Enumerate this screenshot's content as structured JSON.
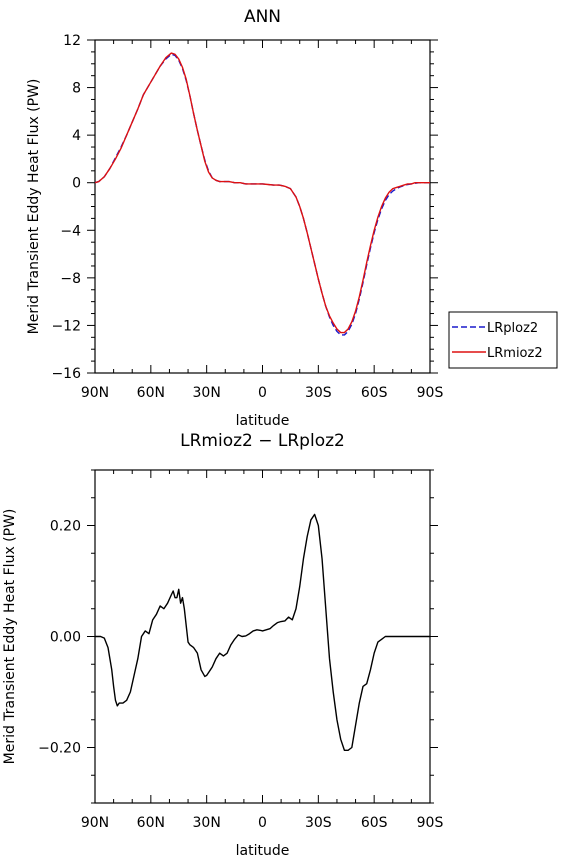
{
  "chart_data": [
    {
      "type": "line",
      "title": "ANN",
      "xlabel": "latitude",
      "ylabel": "Merid Transient Eddy Heat Flux (PW)",
      "xlim": [
        90,
        -90
      ],
      "ylim": [
        -16,
        12
      ],
      "x_tick_values": [
        90,
        60,
        30,
        0,
        -30,
        -60,
        -90
      ],
      "x_tick_labels": [
        "90N",
        "60N",
        "30N",
        "0",
        "30S",
        "60S",
        "90S"
      ],
      "y_tick_values": [
        12,
        8,
        4,
        0,
        -4,
        -8,
        -12,
        -16
      ],
      "y_tick_labels": [
        "12",
        "8",
        "4",
        "0",
        "−4",
        "−8",
        "−12",
        "−16"
      ],
      "legend_placement": "right",
      "series": [
        {
          "name": "LRploz2",
          "color": "#1a1acc",
          "dash": "dashed",
          "x": [
            90,
            88,
            85,
            82,
            79,
            76,
            73,
            70,
            67,
            64,
            61,
            58,
            55,
            52,
            49,
            47,
            45,
            43,
            41,
            39,
            37,
            35,
            33,
            31,
            29,
            27,
            25,
            23,
            21,
            18,
            15,
            12,
            9,
            6,
            3,
            0,
            -3,
            -6,
            -9,
            -12,
            -15,
            -18,
            -20,
            -22,
            -24,
            -26,
            -28,
            -30,
            -32,
            -34,
            -36,
            -38,
            -40,
            -42,
            -44,
            -46,
            -48,
            -50,
            -52,
            -54,
            -56,
            -58,
            -60,
            -62,
            -64,
            -66,
            -68,
            -70,
            -72,
            -74,
            -76,
            -78,
            -80,
            -82,
            -84,
            -86,
            -88,
            -90
          ],
          "y": [
            0.0,
            0.1,
            0.5,
            1.2,
            2.1,
            3.0,
            4.0,
            5.1,
            6.2,
            7.4,
            8.2,
            9.0,
            9.8,
            10.4,
            10.8,
            10.7,
            10.3,
            9.6,
            8.6,
            7.3,
            5.8,
            4.4,
            3.1,
            1.9,
            1.0,
            0.4,
            0.2,
            0.1,
            0.1,
            0.1,
            0.0,
            0.0,
            -0.1,
            -0.1,
            -0.1,
            -0.1,
            -0.15,
            -0.2,
            -0.2,
            -0.3,
            -0.5,
            -1.2,
            -2.0,
            -3.0,
            -4.2,
            -5.5,
            -6.8,
            -8.1,
            -9.3,
            -10.4,
            -11.3,
            -12.0,
            -12.5,
            -12.8,
            -12.8,
            -12.5,
            -11.9,
            -11.0,
            -9.8,
            -8.4,
            -6.9,
            -5.5,
            -4.2,
            -3.1,
            -2.2,
            -1.5,
            -1.0,
            -0.7,
            -0.5,
            -0.35,
            -0.25,
            -0.15,
            -0.1,
            -0.05,
            0.0,
            0.0,
            0.0,
            0.0
          ]
        },
        {
          "name": "LRmioz2",
          "color": "#dd1111",
          "dash": "solid",
          "x": [
            90,
            88,
            85,
            82,
            79,
            76,
            73,
            70,
            67,
            64,
            61,
            58,
            55,
            52,
            49,
            47,
            45,
            43,
            41,
            39,
            37,
            35,
            33,
            31,
            29,
            27,
            25,
            23,
            21,
            18,
            15,
            12,
            9,
            6,
            3,
            0,
            -3,
            -6,
            -9,
            -12,
            -15,
            -18,
            -20,
            -22,
            -24,
            -26,
            -28,
            -30,
            -32,
            -34,
            -36,
            -38,
            -40,
            -42,
            -44,
            -46,
            -48,
            -50,
            -52,
            -54,
            -56,
            -58,
            -60,
            -62,
            -64,
            -66,
            -68,
            -70,
            -72,
            -74,
            -76,
            -78,
            -80,
            -82,
            -84,
            -86,
            -88,
            -90
          ],
          "y": [
            0.0,
            0.1,
            0.5,
            1.2,
            2.0,
            2.9,
            4.0,
            5.1,
            6.2,
            7.4,
            8.2,
            9.0,
            9.8,
            10.5,
            10.9,
            10.8,
            10.4,
            9.7,
            8.7,
            7.3,
            5.8,
            4.4,
            3.1,
            1.8,
            0.9,
            0.4,
            0.2,
            0.1,
            0.1,
            0.1,
            0.0,
            0.0,
            -0.1,
            -0.1,
            -0.1,
            -0.1,
            -0.15,
            -0.2,
            -0.2,
            -0.3,
            -0.5,
            -1.2,
            -2.0,
            -3.0,
            -4.2,
            -5.5,
            -6.8,
            -8.1,
            -9.3,
            -10.4,
            -11.2,
            -11.8,
            -12.3,
            -12.6,
            -12.6,
            -12.3,
            -11.7,
            -10.8,
            -9.6,
            -8.2,
            -6.7,
            -5.3,
            -4.0,
            -2.9,
            -2.0,
            -1.3,
            -0.8,
            -0.5,
            -0.4,
            -0.3,
            -0.2,
            -0.1,
            -0.1,
            0.0,
            0.0,
            0.0,
            0.0,
            0.0
          ]
        }
      ]
    },
    {
      "type": "line",
      "title": "LRmioz2 − LRploz2",
      "xlabel": "latitude",
      "ylabel": "Merid Transient Eddy Heat Flux (PW)",
      "xlim": [
        90,
        -90
      ],
      "ylim": [
        -0.3,
        0.3
      ],
      "x_tick_values": [
        90,
        60,
        30,
        0,
        -30,
        -60,
        -90
      ],
      "x_tick_labels": [
        "90N",
        "60N",
        "30N",
        "0",
        "30S",
        "60S",
        "90S"
      ],
      "y_tick_values": [
        0.2,
        0.0,
        -0.2
      ],
      "y_tick_labels": [
        "0.20",
        "0.00",
        "−0.20"
      ],
      "series": [
        {
          "color": "#000000",
          "dash": "solid",
          "x": [
            90,
            87,
            85,
            83,
            81,
            80,
            79,
            78,
            77,
            75,
            73,
            71,
            69,
            67,
            65,
            63,
            61,
            59,
            57,
            55,
            53,
            51,
            49,
            48,
            47,
            46,
            45,
            44,
            43,
            42,
            41,
            40,
            39,
            37,
            35,
            33,
            31,
            30,
            29,
            28,
            27,
            25,
            23,
            21,
            19,
            17,
            15,
            13,
            11,
            9,
            7,
            5,
            3,
            1,
            0,
            -2,
            -4,
            -6,
            -8,
            -10,
            -12,
            -14,
            -16,
            -18,
            -20,
            -22,
            -24,
            -26,
            -28,
            -30,
            -32,
            -34,
            -36,
            -38,
            -40,
            -42,
            -44,
            -46,
            -48,
            -50,
            -52,
            -54,
            -56,
            -58,
            -60,
            -62,
            -64,
            -66,
            -67,
            -68,
            -70,
            -72,
            -74,
            -76,
            -78,
            -80,
            -82,
            -84,
            -86,
            -88,
            -90
          ],
          "y": [
            0.0,
            0.0,
            -0.003,
            -0.02,
            -0.06,
            -0.09,
            -0.115,
            -0.125,
            -0.12,
            -0.12,
            -0.115,
            -0.1,
            -0.07,
            -0.04,
            0.0,
            0.01,
            0.005,
            0.03,
            0.04,
            0.055,
            0.05,
            0.06,
            0.075,
            0.082,
            0.07,
            0.07,
            0.085,
            0.06,
            0.07,
            0.05,
            0.02,
            -0.01,
            -0.015,
            -0.02,
            -0.03,
            -0.06,
            -0.072,
            -0.07,
            -0.065,
            -0.06,
            -0.055,
            -0.04,
            -0.03,
            -0.035,
            -0.03,
            -0.015,
            -0.005,
            0.003,
            0.0,
            0.001,
            0.005,
            0.01,
            0.012,
            0.011,
            0.01,
            0.012,
            0.014,
            0.02,
            0.025,
            0.027,
            0.028,
            0.035,
            0.03,
            0.05,
            0.09,
            0.14,
            0.18,
            0.21,
            0.22,
            0.2,
            0.14,
            0.05,
            -0.04,
            -0.1,
            -0.15,
            -0.185,
            -0.205,
            -0.205,
            -0.2,
            -0.16,
            -0.12,
            -0.09,
            -0.085,
            -0.06,
            -0.03,
            -0.01,
            -0.005,
            0.0,
            0.0,
            0.0,
            0.0,
            0.0,
            0.0,
            0.0,
            0.0,
            0.0,
            0.0,
            0.0,
            0.0,
            0.0,
            0.0
          ]
        }
      ]
    }
  ]
}
